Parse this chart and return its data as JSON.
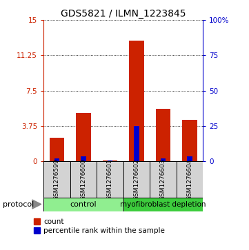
{
  "title": "GDS5821 / ILMN_1223845",
  "samples": [
    "GSM1276599",
    "GSM1276600",
    "GSM1276601",
    "GSM1276602",
    "GSM1276603",
    "GSM1276604"
  ],
  "red_values": [
    2.5,
    5.1,
    0.08,
    12.8,
    5.6,
    4.4
  ],
  "blue_values": [
    0.3,
    0.5,
    0.05,
    3.75,
    0.3,
    0.5
  ],
  "left_yticks": [
    0,
    3.75,
    7.5,
    11.25,
    15
  ],
  "left_ytick_labels": [
    "0",
    "3.75",
    "7.5",
    "11.25",
    "15"
  ],
  "right_ytick_labels": [
    "0",
    "25",
    "50",
    "75",
    "100%"
  ],
  "ylim": [
    0,
    15
  ],
  "groups": [
    {
      "label": "control",
      "span": [
        0,
        3
      ],
      "color": "#90EE90"
    },
    {
      "label": "myofibroblast depletion",
      "span": [
        3,
        6
      ],
      "color": "#3DCC3D"
    }
  ],
  "protocol_label": "protocol",
  "red_color": "#CC2200",
  "blue_color": "#0000CC",
  "bar_width": 0.55,
  "bg_color": "#D3D3D3",
  "title_fontsize": 10,
  "tick_fontsize": 7.5,
  "label_fontsize": 6.5,
  "legend_fontsize": 7.5,
  "protocol_fontsize": 8
}
